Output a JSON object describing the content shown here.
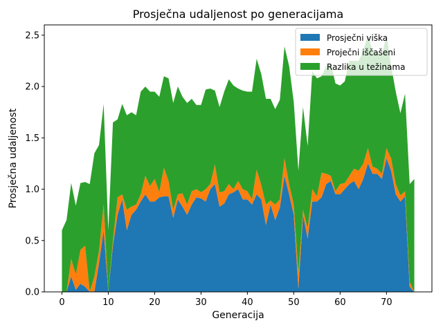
{
  "chart_data": {
    "type": "area",
    "stacked": true,
    "title": "Prosječna udaljenost po generacijama",
    "xlabel": "Generacija",
    "ylabel": "Prosječna udaljenost",
    "xlim": [
      -3.8,
      79.8
    ],
    "ylim": [
      0,
      2.6
    ],
    "xticks": [
      0,
      10,
      20,
      30,
      40,
      50,
      60,
      70
    ],
    "yticks": [
      0.0,
      0.5,
      1.0,
      1.5,
      2.0,
      2.5
    ],
    "ytick_labels": [
      "0.0",
      "0.5",
      "1.0",
      "1.5",
      "2.0",
      "2.5"
    ],
    "legend_position": "upper right",
    "x": [
      0,
      1,
      2,
      3,
      4,
      5,
      6,
      7,
      8,
      9,
      10,
      11,
      12,
      13,
      14,
      15,
      16,
      17,
      18,
      19,
      20,
      21,
      22,
      23,
      24,
      25,
      26,
      27,
      28,
      29,
      30,
      31,
      32,
      33,
      34,
      35,
      36,
      37,
      38,
      39,
      40,
      41,
      42,
      43,
      44,
      45,
      46,
      47,
      48,
      49,
      50,
      51,
      52,
      53,
      54,
      55,
      56,
      57,
      58,
      59,
      60,
      61,
      62,
      63,
      64,
      65,
      66,
      67,
      68,
      69,
      70,
      71,
      72,
      73,
      74,
      75,
      76
    ],
    "series": [
      {
        "name": "Prosječni viška",
        "color": "#1f77b4",
        "values": [
          0.0,
          0.0,
          0.15,
          0.02,
          0.08,
          0.05,
          0.0,
          0.0,
          0.28,
          0.6,
          0.0,
          0.45,
          0.75,
          0.9,
          0.6,
          0.75,
          0.8,
          0.88,
          0.95,
          0.88,
          0.88,
          0.92,
          0.93,
          0.93,
          0.72,
          0.9,
          0.83,
          0.75,
          0.85,
          0.92,
          0.91,
          0.88,
          1.0,
          1.05,
          0.83,
          0.86,
          0.95,
          0.97,
          1.0,
          0.9,
          0.9,
          0.85,
          0.95,
          0.9,
          0.65,
          0.85,
          0.7,
          0.82,
          1.13,
          0.95,
          0.75,
          0.03,
          0.75,
          0.52,
          0.88,
          0.88,
          0.92,
          1.05,
          1.08,
          0.95,
          0.95,
          1.0,
          1.05,
          1.08,
          1.0,
          1.1,
          1.25,
          1.15,
          1.15,
          1.1,
          1.3,
          1.18,
          0.95,
          0.88,
          0.93,
          0.05,
          0.0
        ]
      },
      {
        "name": "Proječni iščašeni",
        "color": "#ff7f0e",
        "values": [
          0.0,
          0.0,
          0.17,
          0.15,
          0.33,
          0.4,
          0.0,
          0.15,
          0.12,
          0.25,
          0.0,
          0.05,
          0.17,
          0.05,
          0.2,
          0.08,
          0.05,
          0.07,
          0.18,
          0.15,
          0.22,
          0.05,
          0.28,
          0.15,
          0.08,
          0.05,
          0.13,
          0.1,
          0.13,
          0.08,
          0.06,
          0.12,
          0.05,
          0.19,
          0.14,
          0.12,
          0.1,
          0.03,
          0.08,
          0.1,
          0.08,
          0.05,
          0.24,
          0.14,
          0.2,
          0.04,
          0.15,
          0.08,
          0.17,
          0.1,
          0.1,
          0.15,
          0.05,
          0.1,
          0.12,
          0.05,
          0.24,
          0.1,
          0.05,
          0.03,
          0.1,
          0.06,
          0.08,
          0.12,
          0.18,
          0.15,
          0.15,
          0.07,
          0.05,
          0.05,
          0.1,
          0.12,
          0.1,
          0.06,
          0.05,
          0.05,
          0.0
        ]
      },
      {
        "name": "Razlika u težinama",
        "color": "#2ca02c",
        "values": [
          0.6,
          0.7,
          0.74,
          0.67,
          0.65,
          0.62,
          1.05,
          1.2,
          1.03,
          0.98,
          0.6,
          1.15,
          0.76,
          0.88,
          0.92,
          0.92,
          0.87,
          1.0,
          0.87,
          0.92,
          0.85,
          0.93,
          0.89,
          1.0,
          1.04,
          1.05,
          0.94,
          0.99,
          0.9,
          0.82,
          0.85,
          0.97,
          0.93,
          0.72,
          0.83,
          0.97,
          1.02,
          1.01,
          0.9,
          0.96,
          0.97,
          1.05,
          1.08,
          1.08,
          1.03,
          0.99,
          0.93,
          0.97,
          1.09,
          1.15,
          1.0,
          1.0,
          1.0,
          0.8,
          1.15,
          1.15,
          0.94,
          1.05,
          1.09,
          1.05,
          0.96,
          0.99,
          1.12,
          1.05,
          1.07,
          1.1,
          1.1,
          1.13,
          1.13,
          1.15,
          1.1,
          0.9,
          0.9,
          0.8,
          0.95,
          0.95,
          1.1
        ]
      }
    ]
  }
}
